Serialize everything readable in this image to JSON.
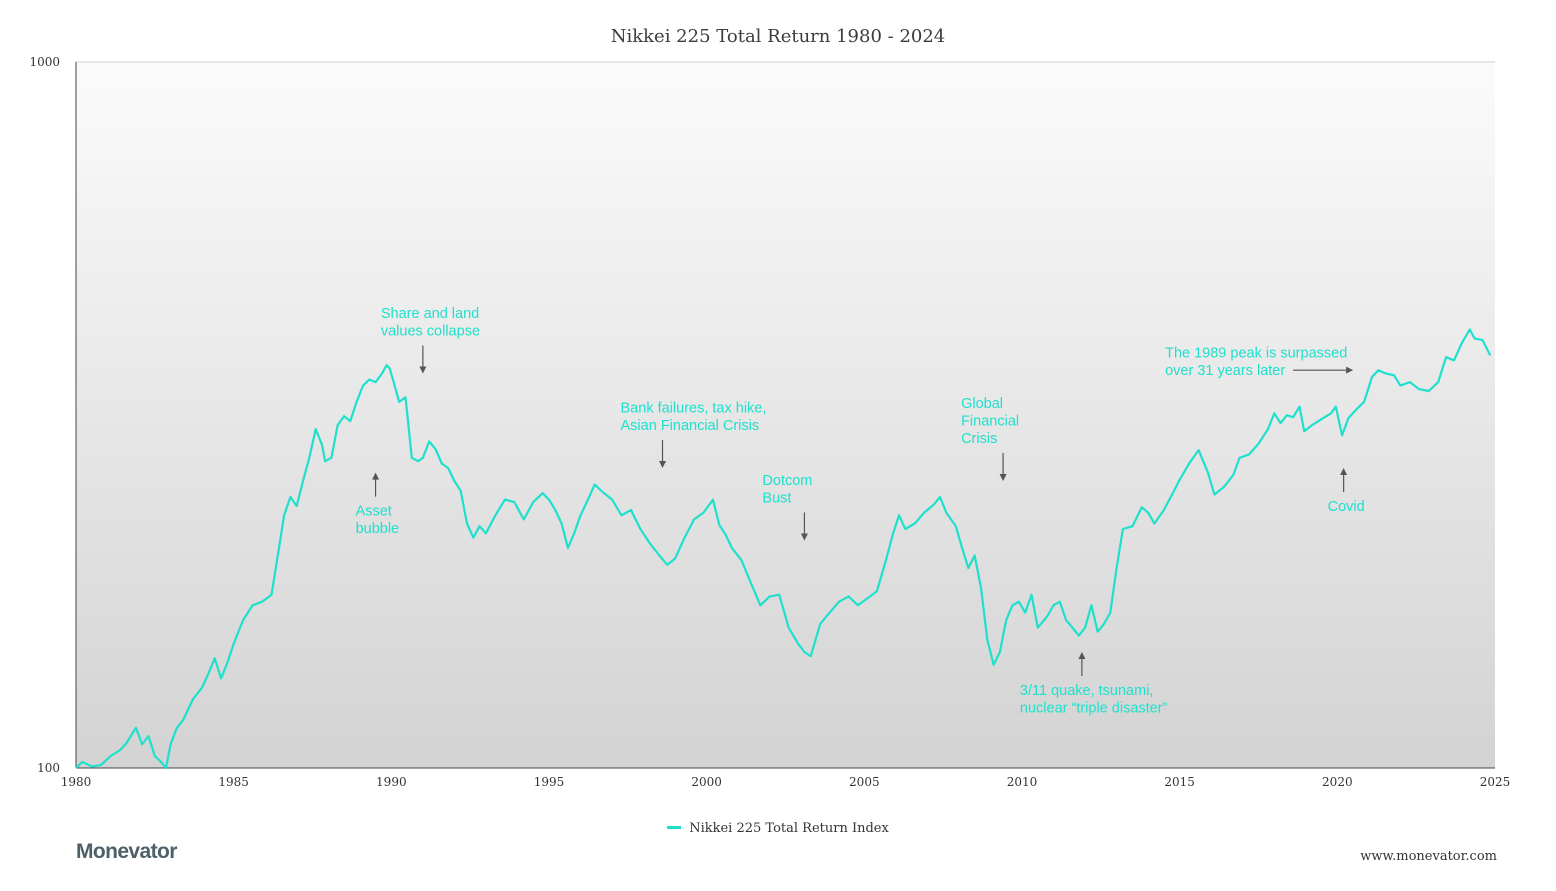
{
  "chart_data": {
    "type": "line",
    "title": "Nikkei 225 Total Return 1980 - 2024",
    "xlabel": "",
    "ylabel": "",
    "y_scale": "log",
    "xlim": [
      1980,
      2025
    ],
    "ylim": [
      100,
      1000
    ],
    "x_ticks": [
      "1980",
      "1985",
      "1990",
      "1995",
      "2000",
      "2005",
      "2010",
      "2015",
      "2020",
      "2025"
    ],
    "y_ticks": [
      "100",
      "1000"
    ],
    "grid": false,
    "legend_position": "bottom-center",
    "series": [
      {
        "name": "Nikkei 225 Total Return Index",
        "color": "#1fe0cc",
        "points": [
          [
            1980.0,
            100
          ],
          [
            1980.2,
            102
          ],
          [
            1980.5,
            100.5
          ],
          [
            1980.8,
            101
          ],
          [
            1981.1,
            104
          ],
          [
            1981.4,
            106
          ],
          [
            1981.6,
            108.5
          ],
          [
            1981.9,
            114
          ],
          [
            1982.1,
            108
          ],
          [
            1982.3,
            111
          ],
          [
            1982.5,
            104
          ],
          [
            1982.7,
            102
          ],
          [
            1982.85,
            100
          ],
          [
            1983.0,
            108
          ],
          [
            1983.2,
            114
          ],
          [
            1983.4,
            117
          ],
          [
            1983.7,
            125
          ],
          [
            1984.0,
            130
          ],
          [
            1984.2,
            136
          ],
          [
            1984.4,
            143
          ],
          [
            1984.6,
            134
          ],
          [
            1984.8,
            141
          ],
          [
            1985.0,
            150
          ],
          [
            1985.3,
            162
          ],
          [
            1985.6,
            170
          ],
          [
            1985.9,
            172
          ],
          [
            1986.2,
            176
          ],
          [
            1986.4,
            200
          ],
          [
            1986.6,
            228
          ],
          [
            1986.8,
            242
          ],
          [
            1987.0,
            235
          ],
          [
            1987.2,
            255
          ],
          [
            1987.4,
            275
          ],
          [
            1987.6,
            302
          ],
          [
            1987.8,
            287
          ],
          [
            1987.9,
            272
          ],
          [
            1988.1,
            275
          ],
          [
            1988.3,
            306
          ],
          [
            1988.5,
            315
          ],
          [
            1988.7,
            310
          ],
          [
            1988.9,
            330
          ],
          [
            1989.1,
            348
          ],
          [
            1989.3,
            355
          ],
          [
            1989.5,
            352
          ],
          [
            1989.7,
            362
          ],
          [
            1989.85,
            372
          ],
          [
            1989.95,
            368
          ],
          [
            1990.05,
            355
          ],
          [
            1990.25,
            330
          ],
          [
            1990.45,
            335
          ],
          [
            1990.65,
            275
          ],
          [
            1990.85,
            272
          ],
          [
            1991.0,
            275
          ],
          [
            1991.2,
            290
          ],
          [
            1991.4,
            283
          ],
          [
            1991.6,
            270
          ],
          [
            1991.8,
            266
          ],
          [
            1992.0,
            255
          ],
          [
            1992.2,
            247
          ],
          [
            1992.4,
            222
          ],
          [
            1992.6,
            212
          ],
          [
            1992.8,
            220
          ],
          [
            1993.0,
            215
          ],
          [
            1993.3,
            228
          ],
          [
            1993.6,
            240
          ],
          [
            1993.9,
            238
          ],
          [
            1994.2,
            225
          ],
          [
            1994.5,
            238
          ],
          [
            1994.8,
            245
          ],
          [
            1995.0,
            240
          ],
          [
            1995.2,
            232
          ],
          [
            1995.4,
            222
          ],
          [
            1995.6,
            205
          ],
          [
            1995.8,
            215
          ],
          [
            1996.0,
            228
          ],
          [
            1996.2,
            238
          ],
          [
            1996.45,
            252
          ],
          [
            1996.7,
            246
          ],
          [
            1997.0,
            240
          ],
          [
            1997.3,
            228
          ],
          [
            1997.6,
            232
          ],
          [
            1997.9,
            218
          ],
          [
            1998.2,
            208
          ],
          [
            1998.5,
            200
          ],
          [
            1998.75,
            194
          ],
          [
            1999.0,
            198
          ],
          [
            1999.3,
            212
          ],
          [
            1999.6,
            225
          ],
          [
            1999.9,
            230
          ],
          [
            2000.2,
            240
          ],
          [
            2000.4,
            221
          ],
          [
            2000.6,
            214
          ],
          [
            2000.8,
            205
          ],
          [
            2001.1,
            197
          ],
          [
            2001.4,
            183
          ],
          [
            2001.7,
            170
          ],
          [
            2002.0,
            175
          ],
          [
            2002.3,
            176
          ],
          [
            2002.6,
            158
          ],
          [
            2002.9,
            150
          ],
          [
            2003.1,
            146
          ],
          [
            2003.3,
            144
          ],
          [
            2003.6,
            160
          ],
          [
            2003.9,
            166
          ],
          [
            2004.2,
            172
          ],
          [
            2004.5,
            175
          ],
          [
            2004.8,
            170
          ],
          [
            2005.1,
            174
          ],
          [
            2005.4,
            178
          ],
          [
            2005.7,
            198
          ],
          [
            2005.9,
            214
          ],
          [
            2006.1,
            228
          ],
          [
            2006.3,
            218
          ],
          [
            2006.6,
            222
          ],
          [
            2006.9,
            230
          ],
          [
            2007.2,
            236
          ],
          [
            2007.4,
            242
          ],
          [
            2007.6,
            230
          ],
          [
            2007.9,
            220
          ],
          [
            2008.1,
            205
          ],
          [
            2008.3,
            192
          ],
          [
            2008.5,
            200
          ],
          [
            2008.7,
            180
          ],
          [
            2008.9,
            152
          ],
          [
            2009.1,
            140
          ],
          [
            2009.3,
            146
          ],
          [
            2009.5,
            162
          ],
          [
            2009.7,
            170
          ],
          [
            2009.9,
            172
          ],
          [
            2010.1,
            166
          ],
          [
            2010.3,
            176
          ],
          [
            2010.5,
            158
          ],
          [
            2010.8,
            164
          ],
          [
            2011.0,
            170
          ],
          [
            2011.2,
            172
          ],
          [
            2011.4,
            162
          ],
          [
            2011.6,
            158
          ],
          [
            2011.8,
            154
          ],
          [
            2012.0,
            158
          ],
          [
            2012.2,
            170
          ],
          [
            2012.4,
            156
          ],
          [
            2012.6,
            160
          ],
          [
            2012.8,
            166
          ],
          [
            2013.0,
            192
          ],
          [
            2013.2,
            218
          ],
          [
            2013.5,
            220
          ],
          [
            2013.8,
            234
          ],
          [
            2014.0,
            230
          ],
          [
            2014.2,
            222
          ],
          [
            2014.5,
            232
          ],
          [
            2014.8,
            246
          ],
          [
            2015.0,
            256
          ],
          [
            2015.3,
            270
          ],
          [
            2015.6,
            282
          ],
          [
            2015.9,
            262
          ],
          [
            2016.1,
            244
          ],
          [
            2016.4,
            250
          ],
          [
            2016.7,
            260
          ],
          [
            2016.9,
            275
          ],
          [
            2017.2,
            278
          ],
          [
            2017.5,
            288
          ],
          [
            2017.8,
            302
          ],
          [
            2018.0,
            318
          ],
          [
            2018.2,
            308
          ],
          [
            2018.4,
            316
          ],
          [
            2018.6,
            314
          ],
          [
            2018.8,
            325
          ],
          [
            2018.95,
            300
          ],
          [
            2019.2,
            306
          ],
          [
            2019.5,
            312
          ],
          [
            2019.8,
            318
          ],
          [
            2019.95,
            325
          ],
          [
            2020.15,
            296
          ],
          [
            2020.35,
            313
          ],
          [
            2020.6,
            322
          ],
          [
            2020.85,
            330
          ],
          [
            2021.1,
            358
          ],
          [
            2021.3,
            366
          ],
          [
            2021.55,
            362
          ],
          [
            2021.8,
            360
          ],
          [
            2022.0,
            348
          ],
          [
            2022.3,
            352
          ],
          [
            2022.6,
            344
          ],
          [
            2022.9,
            342
          ],
          [
            2023.2,
            352
          ],
          [
            2023.45,
            382
          ],
          [
            2023.7,
            378
          ],
          [
            2023.95,
            400
          ],
          [
            2024.2,
            418
          ],
          [
            2024.35,
            406
          ],
          [
            2024.6,
            404
          ],
          [
            2024.85,
            384
          ]
        ]
      }
    ],
    "annotations": [
      {
        "text": [
          "Share and land",
          "values collapse"
        ],
        "arrow": "down",
        "x": 1991,
        "y": 362
      },
      {
        "text": [
          "Asset",
          "bubble"
        ],
        "arrow": "up",
        "x": 1989.5,
        "y": 262
      },
      {
        "text": [
          "Bank failures, tax hike,",
          "Asian Financial Crisis"
        ],
        "arrow": "down",
        "x": 1998.6,
        "y": 266
      },
      {
        "text": [
          "Dotcom",
          "Bust"
        ],
        "arrow": "down",
        "x": 2003.1,
        "y": 210
      },
      {
        "text": [
          "Global",
          "Financial",
          "Crisis"
        ],
        "arrow": "down",
        "x": 2009.4,
        "y": 255
      },
      {
        "text": [
          "3/11 quake, tsunami,",
          "nuclear “triple disaster”"
        ],
        "arrow": "up",
        "x": 2011.9,
        "y": 146
      },
      {
        "text": [
          "The 1989 peak is surpassed",
          "over 31 years later"
        ],
        "arrow": "right",
        "x": 2020.5,
        "y": 366
      },
      {
        "text": [
          "Covid"
        ],
        "arrow": "up",
        "x": 2020.2,
        "y": 266
      }
    ],
    "annotation_color": "#1fe0cc",
    "arrow_color": "#555555"
  },
  "legend": {
    "label": "Nikkei 225 Total Return Index",
    "color": "#1fe0cc"
  },
  "footer": {
    "brand": "Monevator",
    "url": "www.monevator.com"
  }
}
